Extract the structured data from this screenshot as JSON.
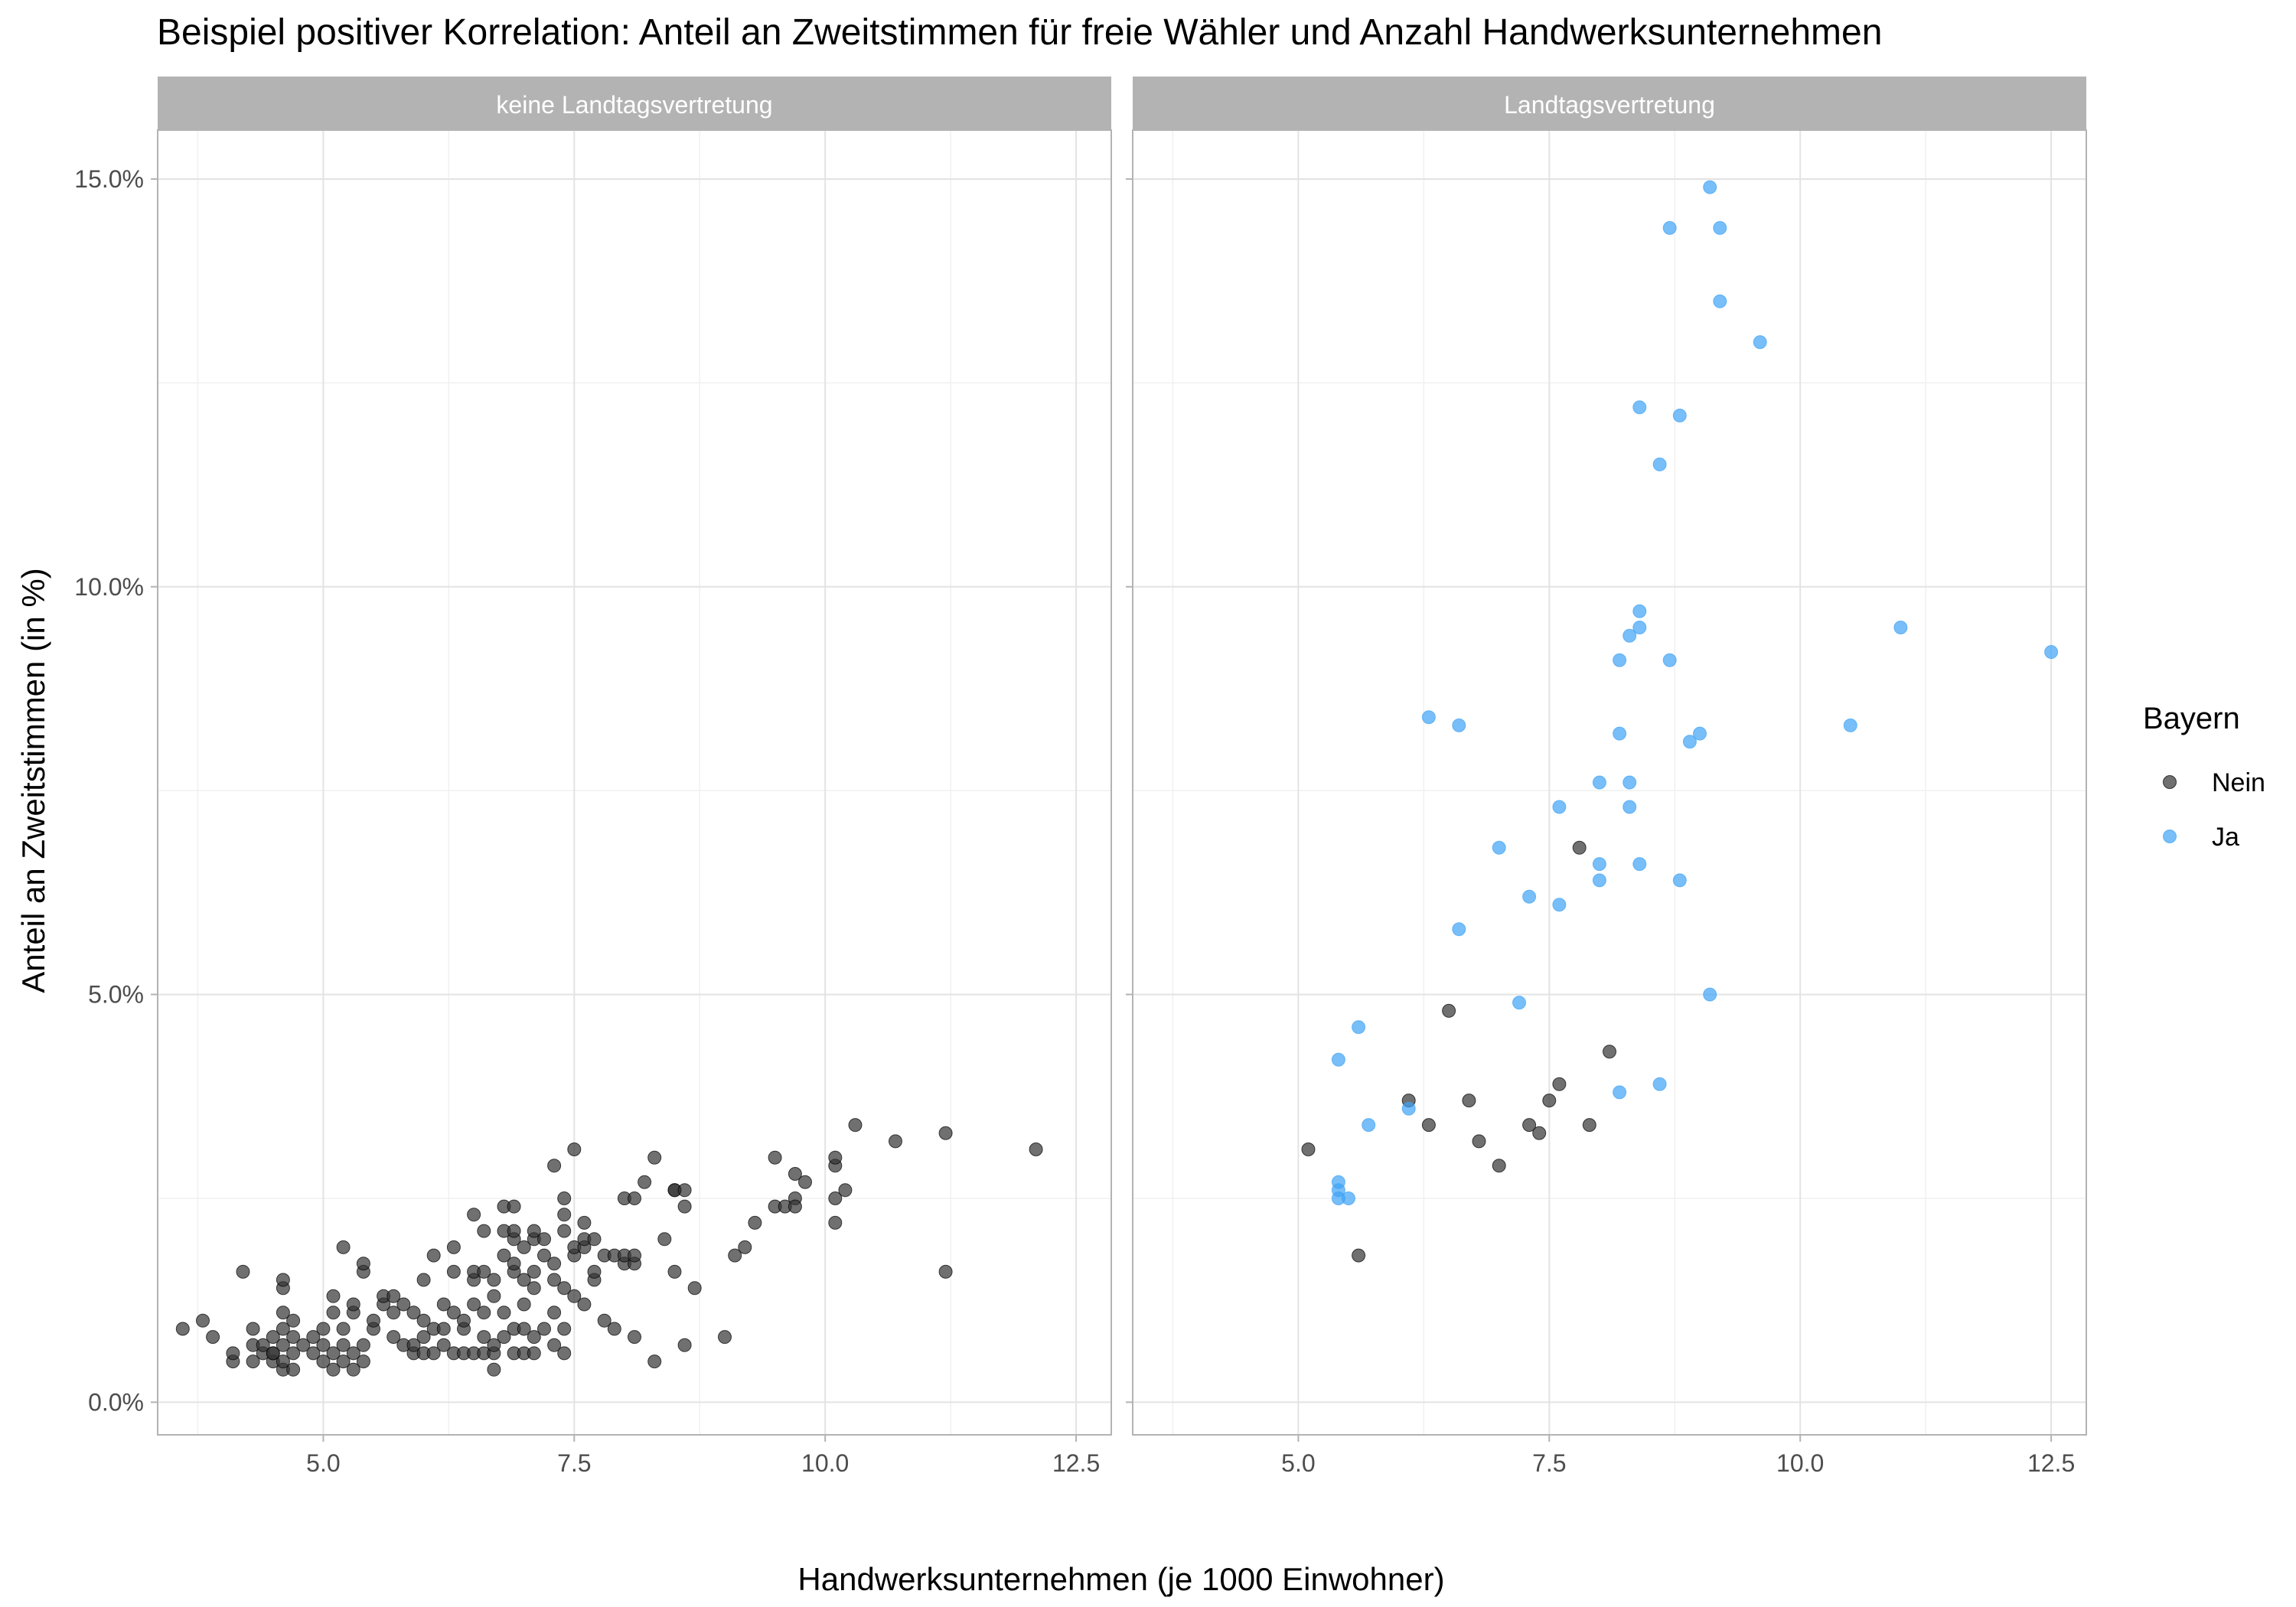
{
  "chart_data": {
    "type": "scatter",
    "title": "Beispiel positiver Korrelation: Anteil an Zweitstimmen für freie Wähler und Anzahl Handwerksunternehmen",
    "xlabel": "Handwerksunternehmen (je 1000 Einwohner)",
    "ylabel": "Anteil an Zweitstimmen (in %)",
    "xlim": [
      3.35,
      12.85
    ],
    "ylim": [
      -0.4,
      15.6
    ],
    "x_ticks": [
      5.0,
      7.5,
      10.0,
      12.5
    ],
    "x_tick_labels": [
      "5.0",
      "7.5",
      "10.0",
      "12.5"
    ],
    "y_ticks": [
      0,
      5,
      10,
      15
    ],
    "y_tick_labels": [
      "0.0%",
      "5.0%",
      "10.0%",
      "15.0%"
    ],
    "grid": true,
    "legend": {
      "title": "Bayern",
      "position": "right",
      "items": [
        {
          "label": "Nein",
          "color": "#333333"
        },
        {
          "label": "Ja",
          "color": "#3fa3f5"
        }
      ]
    },
    "facets": [
      {
        "label": "keine Landtagsvertretung",
        "series": [
          {
            "name": "Nein",
            "color": "#333333",
            "points": [
              [
                3.6,
                0.9
              ],
              [
                3.8,
                1.0
              ],
              [
                3.9,
                0.8
              ],
              [
                4.1,
                0.5
              ],
              [
                4.1,
                0.6
              ],
              [
                4.2,
                1.6
              ],
              [
                4.3,
                0.5
              ],
              [
                4.3,
                0.7
              ],
              [
                4.3,
                0.9
              ],
              [
                4.4,
                0.6
              ],
              [
                4.4,
                0.7
              ],
              [
                4.5,
                0.5
              ],
              [
                4.5,
                0.6
              ],
              [
                4.5,
                0.8
              ],
              [
                4.5,
                0.6
              ],
              [
                4.6,
                0.4
              ],
              [
                4.6,
                0.7
              ],
              [
                4.6,
                0.9
              ],
              [
                4.6,
                1.1
              ],
              [
                4.6,
                1.4
              ],
              [
                4.6,
                1.5
              ],
              [
                4.6,
                0.5
              ],
              [
                4.7,
                0.6
              ],
              [
                4.7,
                0.8
              ],
              [
                4.7,
                1.0
              ],
              [
                4.7,
                0.4
              ],
              [
                4.8,
                0.7
              ],
              [
                4.9,
                0.6
              ],
              [
                4.9,
                0.8
              ],
              [
                5.0,
                0.9
              ],
              [
                5.0,
                0.7
              ],
              [
                5.0,
                0.5
              ],
              [
                5.1,
                1.1
              ],
              [
                5.1,
                0.4
              ],
              [
                5.1,
                0.6
              ],
              [
                5.1,
                1.3
              ],
              [
                5.2,
                0.5
              ],
              [
                5.2,
                0.7
              ],
              [
                5.2,
                0.9
              ],
              [
                5.2,
                1.9
              ],
              [
                5.3,
                1.1
              ],
              [
                5.3,
                1.2
              ],
              [
                5.3,
                0.6
              ],
              [
                5.3,
                0.4
              ],
              [
                5.4,
                0.5
              ],
              [
                5.4,
                0.7
              ],
              [
                5.4,
                1.6
              ],
              [
                5.4,
                1.7
              ],
              [
                5.5,
                0.9
              ],
              [
                5.5,
                1.0
              ],
              [
                5.6,
                1.2
              ],
              [
                5.6,
                1.3
              ],
              [
                5.7,
                1.1
              ],
              [
                5.7,
                1.3
              ],
              [
                5.7,
                0.8
              ],
              [
                5.8,
                0.7
              ],
              [
                5.8,
                1.2
              ],
              [
                5.9,
                0.6
              ],
              [
                5.9,
                0.7
              ],
              [
                5.9,
                1.1
              ],
              [
                6.0,
                0.6
              ],
              [
                6.0,
                0.8
              ],
              [
                6.0,
                1.0
              ],
              [
                6.0,
                1.5
              ],
              [
                6.1,
                0.6
              ],
              [
                6.1,
                0.9
              ],
              [
                6.1,
                1.8
              ],
              [
                6.2,
                0.7
              ],
              [
                6.2,
                0.9
              ],
              [
                6.2,
                1.2
              ],
              [
                6.3,
                0.6
              ],
              [
                6.3,
                1.1
              ],
              [
                6.3,
                1.6
              ],
              [
                6.3,
                1.9
              ],
              [
                6.4,
                0.6
              ],
              [
                6.4,
                0.9
              ],
              [
                6.4,
                1.0
              ],
              [
                6.5,
                0.6
              ],
              [
                6.5,
                1.2
              ],
              [
                6.5,
                1.5
              ],
              [
                6.5,
                1.6
              ],
              [
                6.5,
                2.3
              ],
              [
                6.6,
                0.6
              ],
              [
                6.6,
                0.8
              ],
              [
                6.6,
                1.1
              ],
              [
                6.6,
                1.6
              ],
              [
                6.6,
                2.1
              ],
              [
                6.7,
                0.4
              ],
              [
                6.7,
                0.6
              ],
              [
                6.7,
                0.7
              ],
              [
                6.7,
                1.3
              ],
              [
                6.7,
                1.5
              ],
              [
                6.8,
                0.8
              ],
              [
                6.8,
                1.1
              ],
              [
                6.8,
                1.8
              ],
              [
                6.8,
                2.1
              ],
              [
                6.8,
                2.4
              ],
              [
                6.9,
                0.6
              ],
              [
                6.9,
                0.9
              ],
              [
                6.9,
                1.6
              ],
              [
                6.9,
                1.7
              ],
              [
                6.9,
                2.0
              ],
              [
                6.9,
                2.1
              ],
              [
                6.9,
                2.4
              ],
              [
                7.0,
                0.6
              ],
              [
                7.0,
                0.9
              ],
              [
                7.0,
                1.2
              ],
              [
                7.0,
                1.5
              ],
              [
                7.0,
                1.9
              ],
              [
                7.1,
                0.6
              ],
              [
                7.1,
                0.8
              ],
              [
                7.1,
                1.4
              ],
              [
                7.1,
                1.6
              ],
              [
                7.1,
                2.0
              ],
              [
                7.1,
                2.1
              ],
              [
                7.2,
                0.9
              ],
              [
                7.2,
                1.8
              ],
              [
                7.2,
                2.0
              ],
              [
                7.3,
                0.7
              ],
              [
                7.3,
                1.1
              ],
              [
                7.3,
                1.5
              ],
              [
                7.3,
                1.7
              ],
              [
                7.3,
                2.9
              ],
              [
                7.4,
                0.6
              ],
              [
                7.4,
                0.9
              ],
              [
                7.4,
                1.4
              ],
              [
                7.4,
                2.1
              ],
              [
                7.4,
                2.3
              ],
              [
                7.4,
                2.5
              ],
              [
                7.5,
                1.3
              ],
              [
                7.5,
                1.8
              ],
              [
                7.5,
                1.9
              ],
              [
                7.5,
                3.1
              ],
              [
                7.6,
                1.2
              ],
              [
                7.6,
                1.9
              ],
              [
                7.6,
                2.0
              ],
              [
                7.6,
                2.2
              ],
              [
                7.7,
                1.5
              ],
              [
                7.7,
                1.6
              ],
              [
                7.7,
                2.0
              ],
              [
                7.8,
                1.0
              ],
              [
                7.8,
                1.8
              ],
              [
                7.9,
                0.9
              ],
              [
                7.9,
                1.8
              ],
              [
                8.0,
                1.7
              ],
              [
                8.0,
                1.8
              ],
              [
                8.0,
                2.5
              ],
              [
                8.1,
                0.8
              ],
              [
                8.1,
                1.7
              ],
              [
                8.1,
                1.8
              ],
              [
                8.1,
                2.5
              ],
              [
                8.2,
                2.7
              ],
              [
                8.3,
                0.5
              ],
              [
                8.3,
                3.0
              ],
              [
                8.4,
                2.0
              ],
              [
                8.5,
                1.6
              ],
              [
                8.5,
                2.6
              ],
              [
                8.5,
                2.6
              ],
              [
                8.6,
                0.7
              ],
              [
                8.6,
                2.4
              ],
              [
                8.6,
                2.6
              ],
              [
                8.7,
                1.4
              ],
              [
                9.0,
                0.8
              ],
              [
                9.1,
                1.8
              ],
              [
                9.2,
                1.9
              ],
              [
                9.3,
                2.2
              ],
              [
                9.5,
                2.4
              ],
              [
                9.5,
                3.0
              ],
              [
                9.6,
                2.4
              ],
              [
                9.7,
                2.5
              ],
              [
                9.7,
                2.8
              ],
              [
                9.7,
                2.4
              ],
              [
                9.8,
                2.7
              ],
              [
                10.1,
                2.2
              ],
              [
                10.1,
                2.5
              ],
              [
                10.1,
                2.9
              ],
              [
                10.1,
                3.0
              ],
              [
                10.2,
                2.6
              ],
              [
                10.3,
                3.4
              ],
              [
                10.7,
                3.2
              ],
              [
                11.2,
                1.6
              ],
              [
                11.2,
                3.3
              ],
              [
                12.1,
                3.1
              ]
            ]
          }
        ]
      },
      {
        "label": "Landtagsvertretung",
        "series": [
          {
            "name": "Nein",
            "color": "#333333",
            "points": [
              [
                5.1,
                3.1
              ],
              [
                5.6,
                1.8
              ],
              [
                6.1,
                3.7
              ],
              [
                6.3,
                3.4
              ],
              [
                6.5,
                4.8
              ],
              [
                6.7,
                3.7
              ],
              [
                6.8,
                3.2
              ],
              [
                7.0,
                2.9
              ],
              [
                7.3,
                3.4
              ],
              [
                7.4,
                3.3
              ],
              [
                7.5,
                3.7
              ],
              [
                7.6,
                3.9
              ],
              [
                7.8,
                6.8
              ],
              [
                7.9,
                3.4
              ],
              [
                8.1,
                4.3
              ]
            ]
          },
          {
            "name": "Ja",
            "color": "#3fa3f5",
            "points": [
              [
                5.4,
                2.7
              ],
              [
                5.4,
                2.6
              ],
              [
                5.4,
                2.5
              ],
              [
                5.5,
                2.5
              ],
              [
                5.4,
                4.2
              ],
              [
                5.6,
                4.6
              ],
              [
                5.7,
                3.4
              ],
              [
                6.1,
                3.6
              ],
              [
                6.3,
                8.4
              ],
              [
                6.6,
                8.3
              ],
              [
                6.6,
                5.8
              ],
              [
                7.0,
                6.8
              ],
              [
                7.2,
                4.9
              ],
              [
                7.3,
                6.2
              ],
              [
                7.6,
                6.1
              ],
              [
                7.6,
                7.3
              ],
              [
                8.0,
                6.4
              ],
              [
                8.0,
                6.6
              ],
              [
                8.0,
                7.6
              ],
              [
                8.2,
                3.8
              ],
              [
                8.2,
                8.2
              ],
              [
                8.2,
                9.1
              ],
              [
                8.3,
                7.3
              ],
              [
                8.3,
                7.6
              ],
              [
                8.3,
                9.4
              ],
              [
                8.4,
                6.6
              ],
              [
                8.4,
                9.7
              ],
              [
                8.4,
                9.5
              ],
              [
                8.4,
                12.2
              ],
              [
                8.6,
                11.5
              ],
              [
                8.6,
                3.9
              ],
              [
                8.7,
                9.1
              ],
              [
                8.7,
                14.4
              ],
              [
                8.8,
                6.4
              ],
              [
                8.8,
                12.1
              ],
              [
                8.9,
                8.1
              ],
              [
                9.0,
                8.2
              ],
              [
                9.1,
                5.0
              ],
              [
                9.1,
                14.9
              ],
              [
                9.2,
                14.4
              ],
              [
                9.2,
                13.5
              ],
              [
                9.6,
                13.0
              ],
              [
                10.5,
                8.3
              ],
              [
                11.0,
                9.5
              ],
              [
                12.5,
                9.2
              ]
            ]
          }
        ]
      }
    ]
  }
}
